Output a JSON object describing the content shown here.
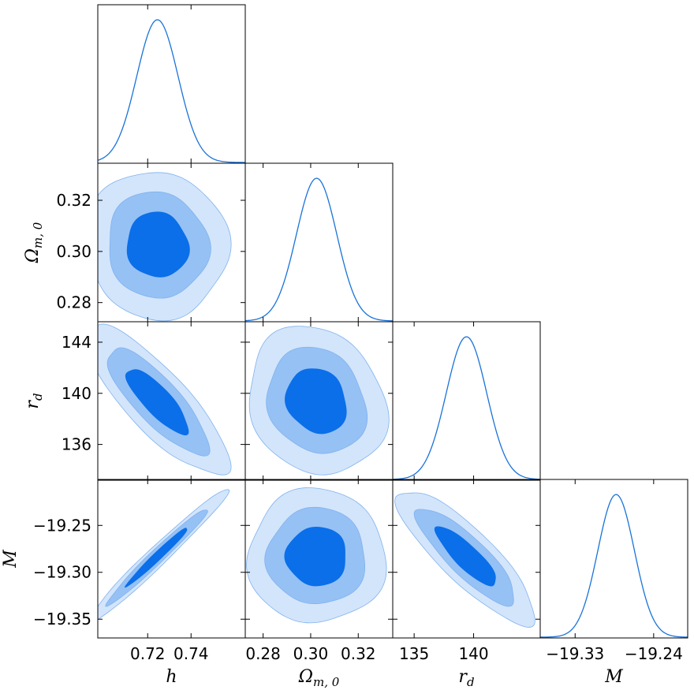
{
  "chart_data": {
    "type": "corner",
    "params": [
      {
        "key": "h",
        "label": "h",
        "range": [
          0.697,
          0.765
        ],
        "ticks": [
          0.72,
          0.74
        ],
        "tick_labels": [
          "0.72",
          "0.74"
        ],
        "mean": 0.7245,
        "sigma": 0.0095
      },
      {
        "key": "Om",
        "label": "Ω",
        "label_sub": "m, 0",
        "range": [
          0.2725,
          0.3345
        ],
        "ticks": [
          0.28,
          0.3,
          0.32
        ],
        "tick_labels": [
          "0.28",
          "0.30",
          "0.32"
        ],
        "mean": 0.3025,
        "sigma": 0.0085
      },
      {
        "key": "rd",
        "label": "r",
        "label_sub": "d",
        "range": [
          133.2,
          145.6
        ],
        "ticks": [
          136,
          140,
          144
        ],
        "tick_labels": [
          "136",
          "140",
          "144"
        ],
        "xticks": [
          135,
          140
        ],
        "xtick_labels": [
          "135",
          "140"
        ],
        "mean": 139.4,
        "sigma": 1.7
      },
      {
        "key": "M",
        "label": "M",
        "range": [
          -19.37,
          -19.201
        ],
        "ticks": [
          -19.35,
          -19.3,
          -19.25
        ],
        "tick_labels": [
          "−19.35",
          "−19.30",
          "−19.25"
        ],
        "xticks": [
          -19.33,
          -19.24
        ],
        "xtick_labels": [
          "−19.33",
          "−19.24"
        ],
        "mean": -19.283,
        "sigma": 0.021
      }
    ],
    "correlations": {
      "1-0": -0.05,
      "2-0": -0.82,
      "2-1": -0.15,
      "3-0": 0.98,
      "3-1": 0.0,
      "3-2": -0.85
    },
    "contour_levels": [
      "68%",
      "95%",
      "99.7%"
    ],
    "colors": {
      "line": "#1a73d9",
      "fill_1sigma": "#0a6fe8",
      "fill_2sigma": "#96c1f5",
      "fill_3sigma": "#d3e5fb",
      "edge": "#7fb2ee"
    }
  }
}
